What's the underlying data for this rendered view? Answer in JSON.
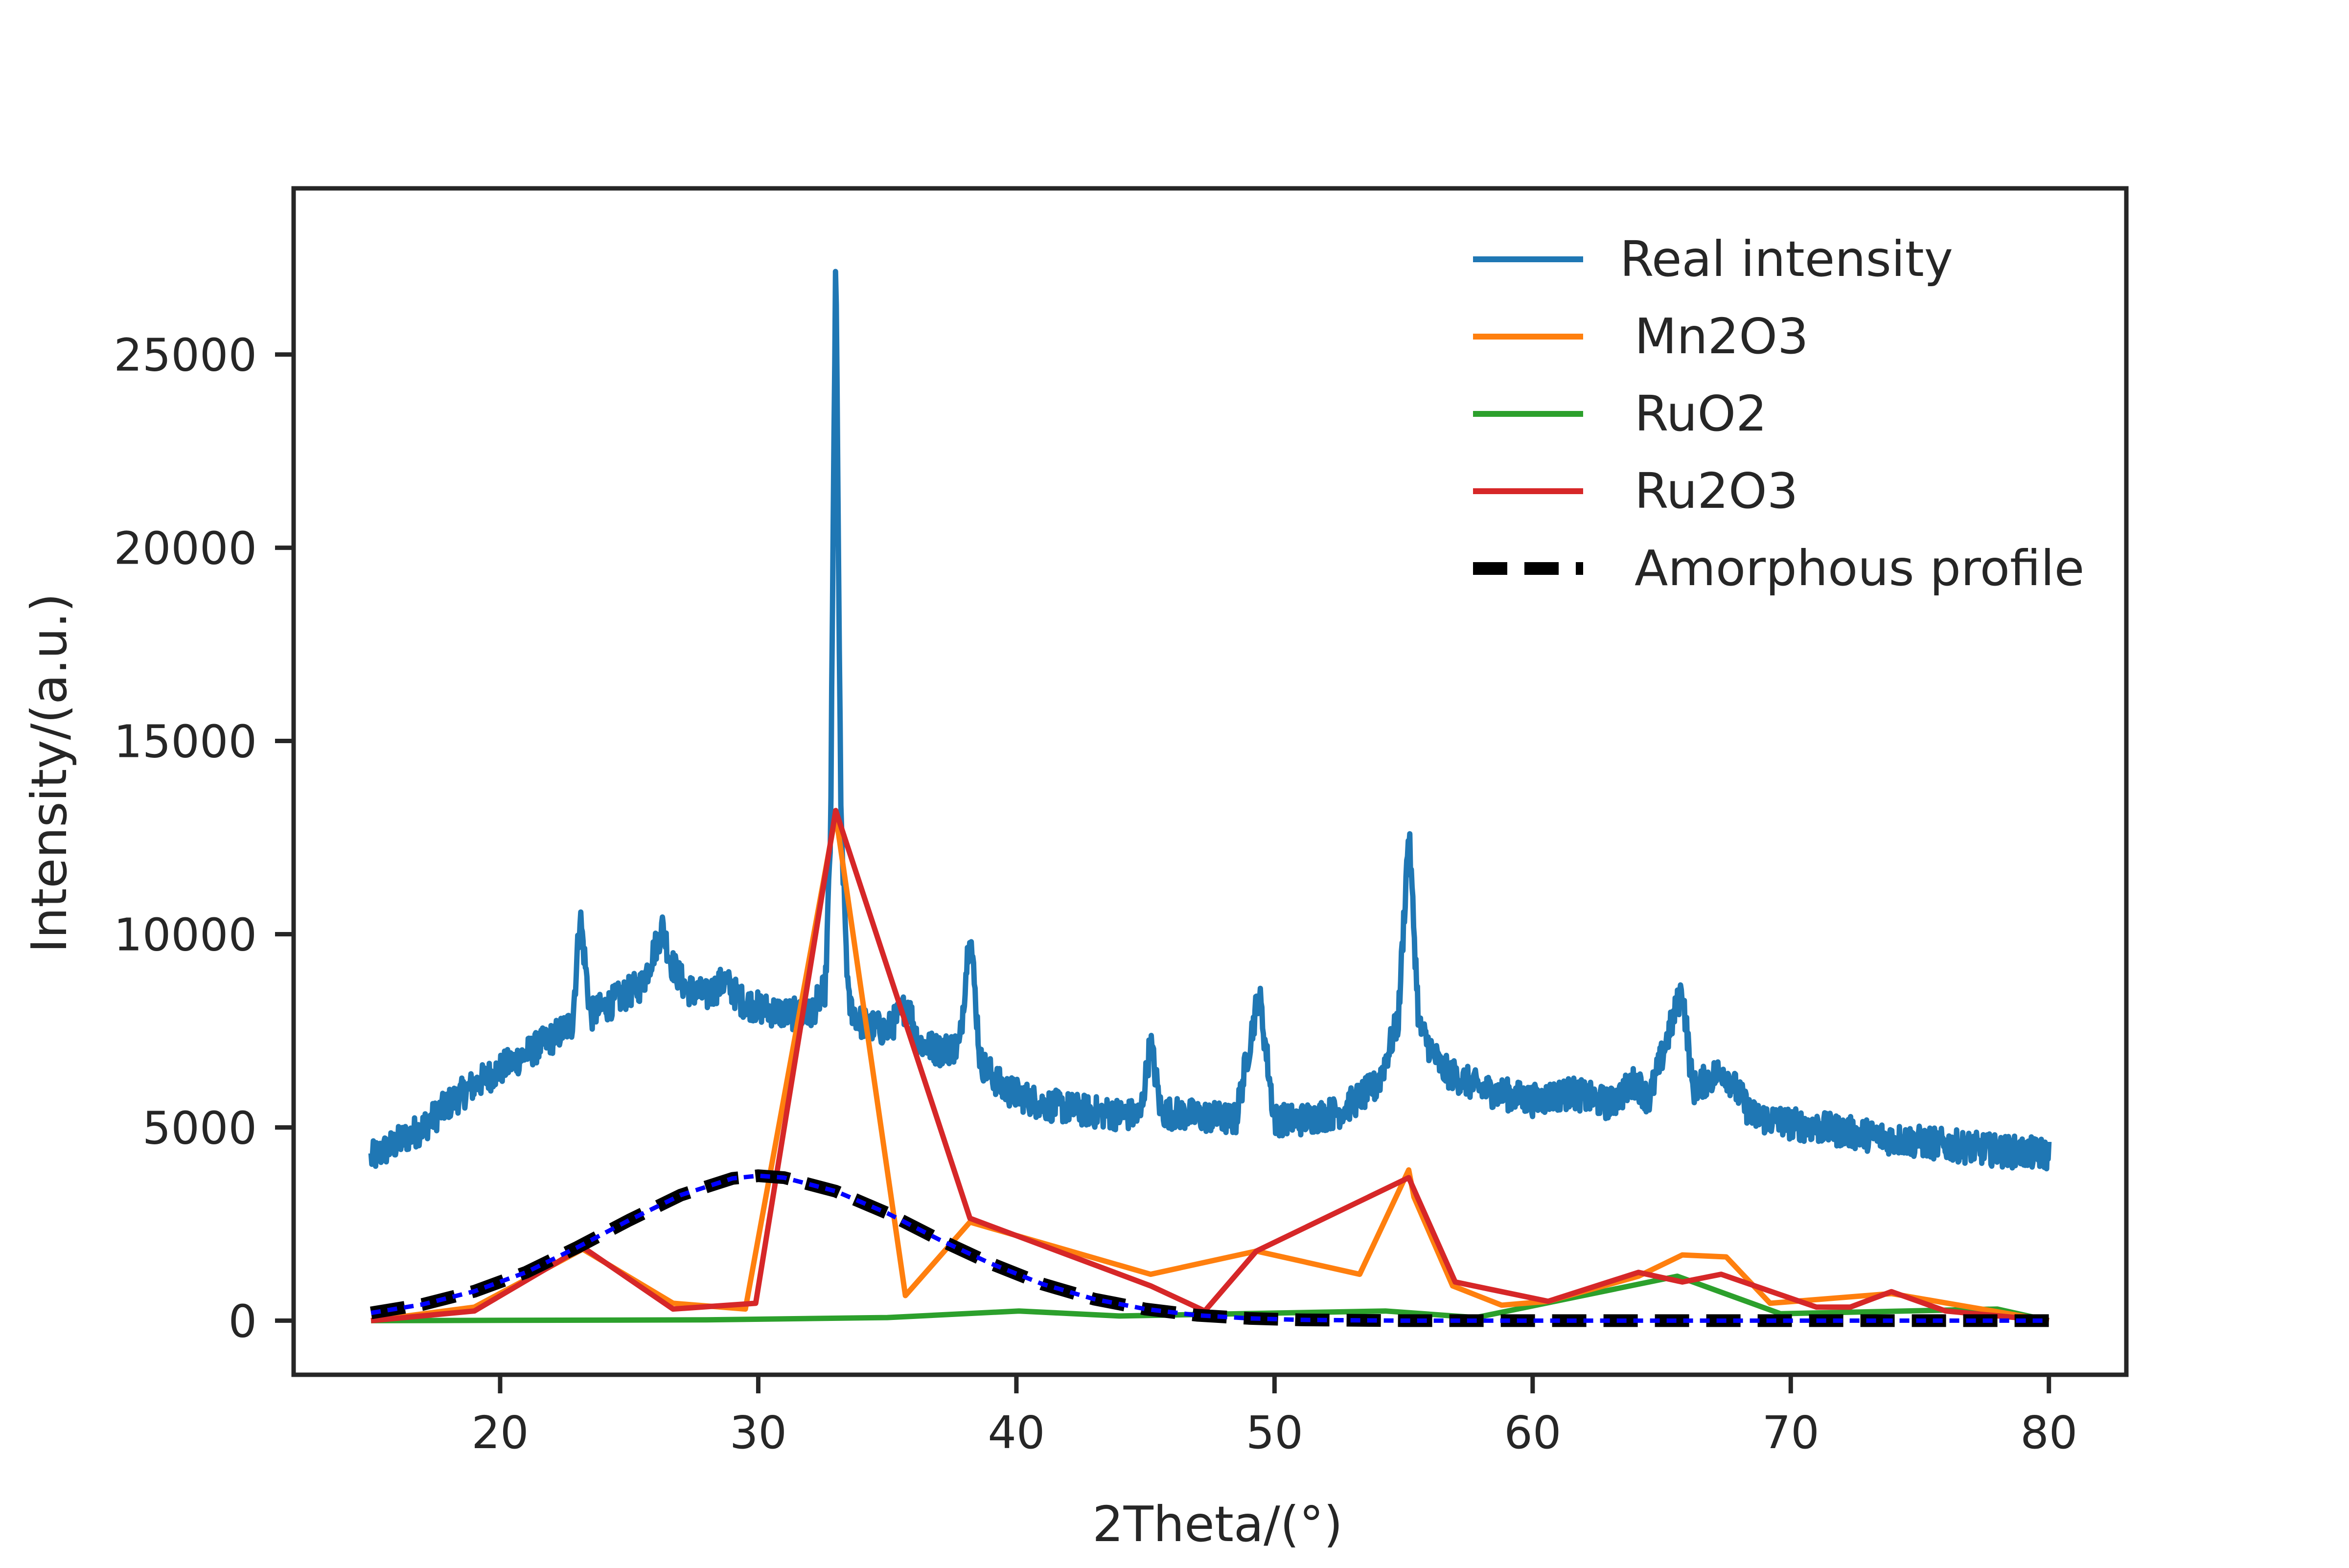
{
  "chart_data": {
    "type": "line",
    "title": "",
    "xlabel": "2Theta/(°)",
    "ylabel": "Intensity/(a.u.)",
    "xlim": [
      12,
      83
    ],
    "ylim": [
      -1400,
      29300
    ],
    "xticks": [
      20,
      30,
      40,
      50,
      60,
      70,
      80
    ],
    "yticks": [
      0,
      5000,
      10000,
      15000,
      20000,
      25000
    ],
    "grid": false,
    "legend_position": "top-right",
    "series": [
      {
        "name": "Real intensity",
        "color": "#1f77b4",
        "style": "solid",
        "noise": 420,
        "x": [
          15,
          16,
          17,
          18,
          19,
          20,
          21,
          22,
          22.8,
          23.1,
          23.5,
          24.5,
          25.5,
          26.3,
          26.6,
          27.2,
          28.0,
          28.7,
          29.3,
          30.0,
          31.0,
          32.0,
          32.6,
          32.8,
          33.0,
          33.2,
          33.5,
          34.0,
          35.0,
          35.8,
          36.2,
          37.0,
          37.8,
          38.2,
          38.6,
          39.5,
          41.0,
          43.0,
          44.8,
          45.2,
          45.6,
          47.0,
          48.5,
          49.4,
          50.0,
          51.0,
          52.5,
          54.0,
          54.8,
          55.2,
          55.6,
          56.5,
          58.0,
          60.0,
          61.5,
          63.0,
          64.0,
          64.5,
          65.8,
          66.2,
          67.4,
          68.5,
          70.0,
          72.0,
          74.0,
          76.0,
          78.0,
          80.0
        ],
        "y": [
          4200,
          4600,
          5000,
          5600,
          6100,
          6500,
          6900,
          7300,
          7700,
          10500,
          7900,
          8300,
          8700,
          10200,
          9300,
          8600,
          8400,
          8800,
          8300,
          8100,
          7950,
          7900,
          8600,
          12500,
          27800,
          13000,
          8200,
          7700,
          7500,
          8200,
          7200,
          7000,
          7100,
          10200,
          6700,
          6000,
          5600,
          5400,
          5300,
          7200,
          5400,
          5300,
          5200,
          8500,
          5200,
          5200,
          5400,
          6100,
          7800,
          12700,
          7600,
          6500,
          6000,
          5700,
          5900,
          5600,
          6200,
          5700,
          8600,
          6000,
          6500,
          5300,
          5100,
          4900,
          4700,
          4550,
          4400,
          4300
        ]
      },
      {
        "name": "Mn2O3",
        "color": "#ff7f0e",
        "style": "solid",
        "noise": 0,
        "x": [
          15,
          19.0,
          23.2,
          26.7,
          29.5,
          33.0,
          35.7,
          38.2,
          45.2,
          49.3,
          53.3,
          55.2,
          55.4,
          56.9,
          58.8,
          60.6,
          64.1,
          65.8,
          67.5,
          69.2,
          73.9,
          80
        ],
        "y": [
          0,
          350,
          1850,
          450,
          300,
          13100,
          650,
          2550,
          1200,
          1800,
          1200,
          3900,
          3200,
          900,
          400,
          500,
          1150,
          1700,
          1650,
          450,
          700,
          0
        ]
      },
      {
        "name": "RuO2",
        "color": "#2ca02c",
        "style": "solid",
        "noise": 0,
        "x": [
          15,
          28.0,
          35.0,
          40.1,
          44.0,
          54.3,
          57.8,
          65.6,
          69.6,
          78.0,
          80
        ],
        "y": [
          0,
          20,
          80,
          250,
          120,
          250,
          80,
          1150,
          180,
          300,
          0
        ]
      },
      {
        "name": "Ru2O3",
        "color": "#d62728",
        "style": "solid",
        "noise": 0,
        "x": [
          15,
          19.0,
          23.2,
          26.7,
          29.9,
          33.0,
          38.2,
          45.2,
          47.3,
          49.3,
          55.2,
          57.0,
          60.6,
          64.1,
          65.8,
          67.3,
          71.0,
          72.3,
          73.9,
          76.0,
          80
        ],
        "y": [
          0,
          250,
          1900,
          300,
          450,
          13200,
          2650,
          900,
          250,
          1800,
          3700,
          1000,
          500,
          1250,
          1000,
          1200,
          350,
          350,
          750,
          250,
          0
        ]
      },
      {
        "name": "Amorphous profile",
        "color": "#000000",
        "overlay_color": "#0000ff",
        "style": "dashed",
        "noise": 0,
        "x": [
          15,
          17,
          19,
          21,
          23,
          25,
          27,
          29,
          30,
          31,
          33,
          35,
          37,
          39,
          41,
          43,
          45,
          47,
          49,
          51,
          55,
          60,
          70,
          80
        ],
        "y": [
          200,
          420,
          760,
          1250,
          1900,
          2600,
          3250,
          3680,
          3750,
          3700,
          3350,
          2780,
          2100,
          1480,
          950,
          560,
          300,
          140,
          60,
          20,
          0,
          0,
          0,
          0
        ]
      }
    ]
  }
}
